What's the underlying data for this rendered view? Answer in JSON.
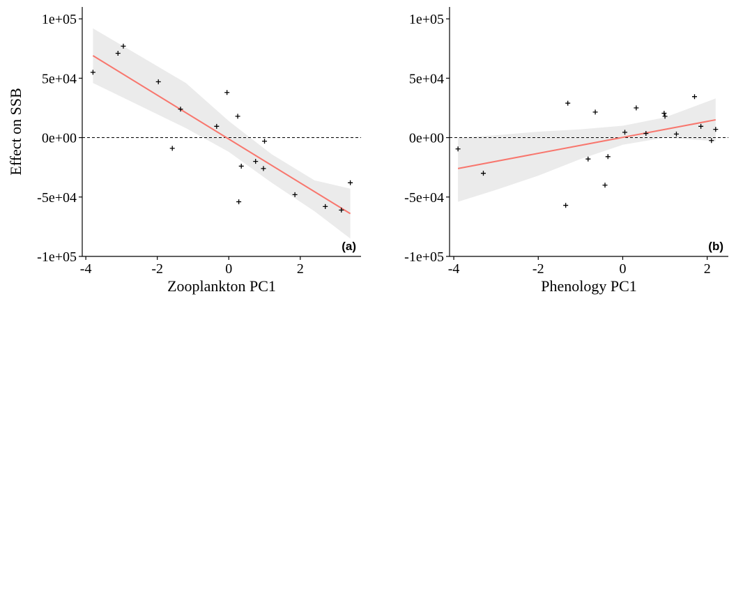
{
  "chart_data": [
    {
      "type": "scatter",
      "panel_label": "(a)",
      "xlabel": "Zooplankton PC1",
      "ylabel": "Effect on SSB",
      "xlim": [
        -4.1,
        3.7
      ],
      "ylim": [
        -100000,
        110000
      ],
      "x_ticks": [
        -4,
        -2,
        0,
        2
      ],
      "x_tick_labels": [
        "-4",
        "-2",
        "0",
        "2"
      ],
      "y_ticks": [
        -100000,
        -50000,
        0,
        50000,
        100000
      ],
      "y_tick_labels": [
        "-1e+05",
        "-5e+04",
        "0e+00",
        "5e+04",
        "1e+05"
      ],
      "reference_line_y": 0,
      "points": [
        {
          "x": -3.8,
          "y": 55000
        },
        {
          "x": -3.1,
          "y": 71000
        },
        {
          "x": -2.95,
          "y": 77000
        },
        {
          "x": -1.97,
          "y": 47000
        },
        {
          "x": -1.35,
          "y": 24000
        },
        {
          "x": -1.58,
          "y": -9000
        },
        {
          "x": -0.34,
          "y": 9500
        },
        {
          "x": -0.05,
          "y": 38000
        },
        {
          "x": 0.25,
          "y": 18000
        },
        {
          "x": 0.35,
          "y": -24000
        },
        {
          "x": 0.28,
          "y": -54000
        },
        {
          "x": 0.75,
          "y": -20000
        },
        {
          "x": 0.97,
          "y": -26000
        },
        {
          "x": 1.0,
          "y": -3000
        },
        {
          "x": 1.85,
          "y": -48000
        },
        {
          "x": 2.7,
          "y": -58000
        },
        {
          "x": 3.15,
          "y": -61000
        },
        {
          "x": 3.4,
          "y": -38000
        }
      ],
      "fit": {
        "x": [
          -3.8,
          3.4
        ],
        "y": [
          69000,
          -64000
        ]
      },
      "ci_band": {
        "x": [
          -3.8,
          -2.5,
          -1.2,
          0,
          1.2,
          2.4,
          3.4
        ],
        "lower": [
          46000,
          27000,
          8000,
          -12000,
          -38000,
          -62000,
          -85000
        ],
        "upper": [
          92000,
          69000,
          46000,
          14000,
          -14000,
          -36000,
          -43000
        ]
      },
      "colors": {
        "points": "#000000",
        "fit": "#f8766d",
        "band": "#ebebeb"
      }
    },
    {
      "type": "scatter",
      "panel_label": "(b)",
      "xlabel": "Phenology PC1",
      "ylabel": "",
      "xlim": [
        -4.1,
        2.5
      ],
      "ylim": [
        -100000,
        110000
      ],
      "x_ticks": [
        -4,
        -2,
        0,
        2
      ],
      "x_tick_labels": [
        "-4",
        "-2",
        "0",
        "2"
      ],
      "y_ticks": [
        -100000,
        -50000,
        0,
        50000,
        100000
      ],
      "y_tick_labels": [
        "-1e+05",
        "-5e+04",
        "0e+00",
        "5e+04",
        "1e+05"
      ],
      "reference_line_y": 0,
      "points": [
        {
          "x": -3.9,
          "y": -9500
        },
        {
          "x": -3.3,
          "y": -30000
        },
        {
          "x": -1.35,
          "y": -57000
        },
        {
          "x": -1.3,
          "y": 29000
        },
        {
          "x": -0.82,
          "y": -18000
        },
        {
          "x": -0.65,
          "y": 21500
        },
        {
          "x": -0.42,
          "y": -40000
        },
        {
          "x": -0.35,
          "y": -16000
        },
        {
          "x": 0.05,
          "y": 4500
        },
        {
          "x": 0.32,
          "y": 25000
        },
        {
          "x": 0.55,
          "y": 3500
        },
        {
          "x": 0.98,
          "y": 20500
        },
        {
          "x": 1.0,
          "y": 18000
        },
        {
          "x": 1.27,
          "y": 3000
        },
        {
          "x": 1.7,
          "y": 34500
        },
        {
          "x": 1.85,
          "y": 9500
        },
        {
          "x": 2.1,
          "y": -2500
        },
        {
          "x": 2.2,
          "y": 7000
        }
      ],
      "fit": {
        "x": [
          -3.9,
          2.2
        ],
        "y": [
          -26000,
          15000
        ]
      },
      "ci_band": {
        "x": [
          -3.9,
          -3.0,
          -2.0,
          -1.0,
          0,
          1.0,
          2.2
        ],
        "lower": [
          -54000,
          -44000,
          -32000,
          -18000,
          -6000,
          0,
          -3000
        ],
        "upper": [
          0,
          2000,
          5000,
          7000,
          10000,
          17000,
          33000
        ]
      },
      "colors": {
        "points": "#000000",
        "fit": "#f8766d",
        "band": "#ebebeb"
      }
    }
  ]
}
